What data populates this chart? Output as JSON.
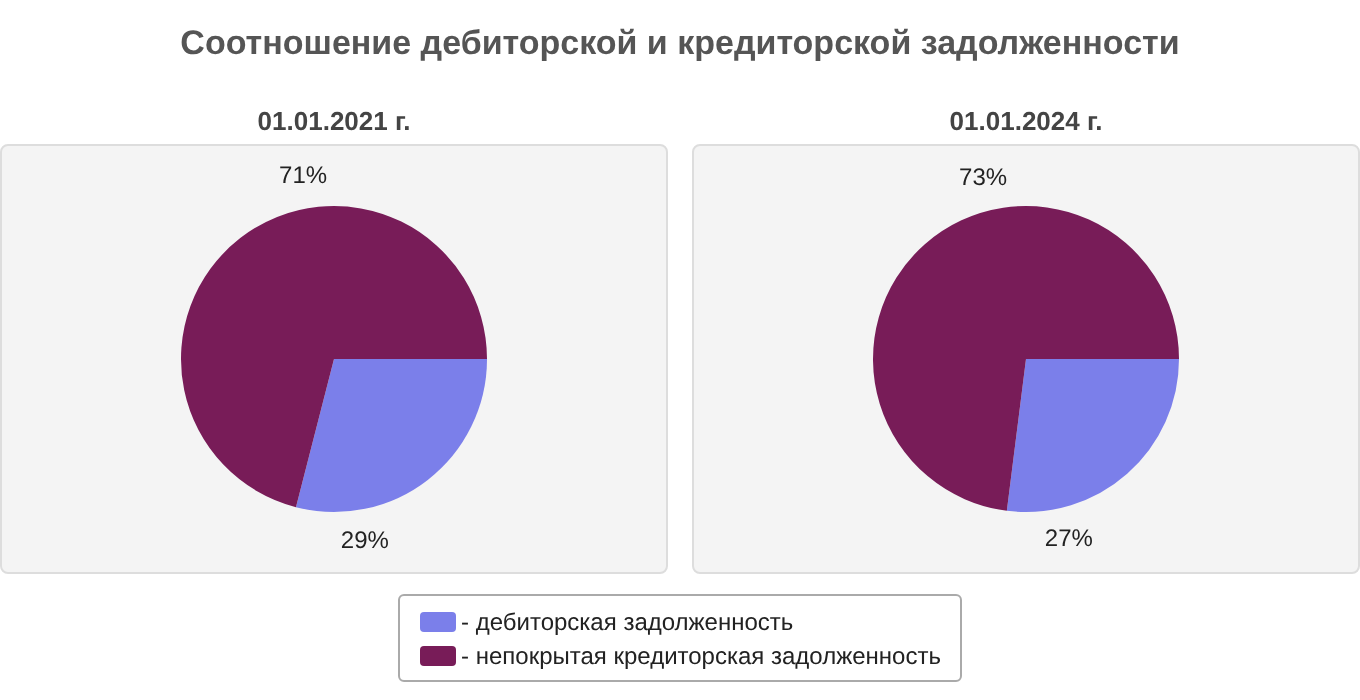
{
  "chart_data": [
    {
      "type": "pie",
      "title": "Соотношение дебиторской и кредиторской задолженности",
      "subtitle": "01.01.2021 г.",
      "categories": [
        "- дебиторская задолженность",
        "- непокрытая кредиторская задолженность"
      ],
      "values": [
        29,
        71
      ],
      "colors": [
        "#7b7fea",
        "#781c58"
      ],
      "value_labels": [
        "29%",
        "71%"
      ],
      "legend": "bottom"
    },
    {
      "type": "pie",
      "subtitle": "01.01.2024 г.",
      "categories": [
        null,
        null
      ],
      "values": [
        27,
        73
      ],
      "colors": [
        "#7b7fea",
        "#781c58"
      ],
      "value_labels": [
        "27%",
        "73%"
      ]
    }
  ]
}
